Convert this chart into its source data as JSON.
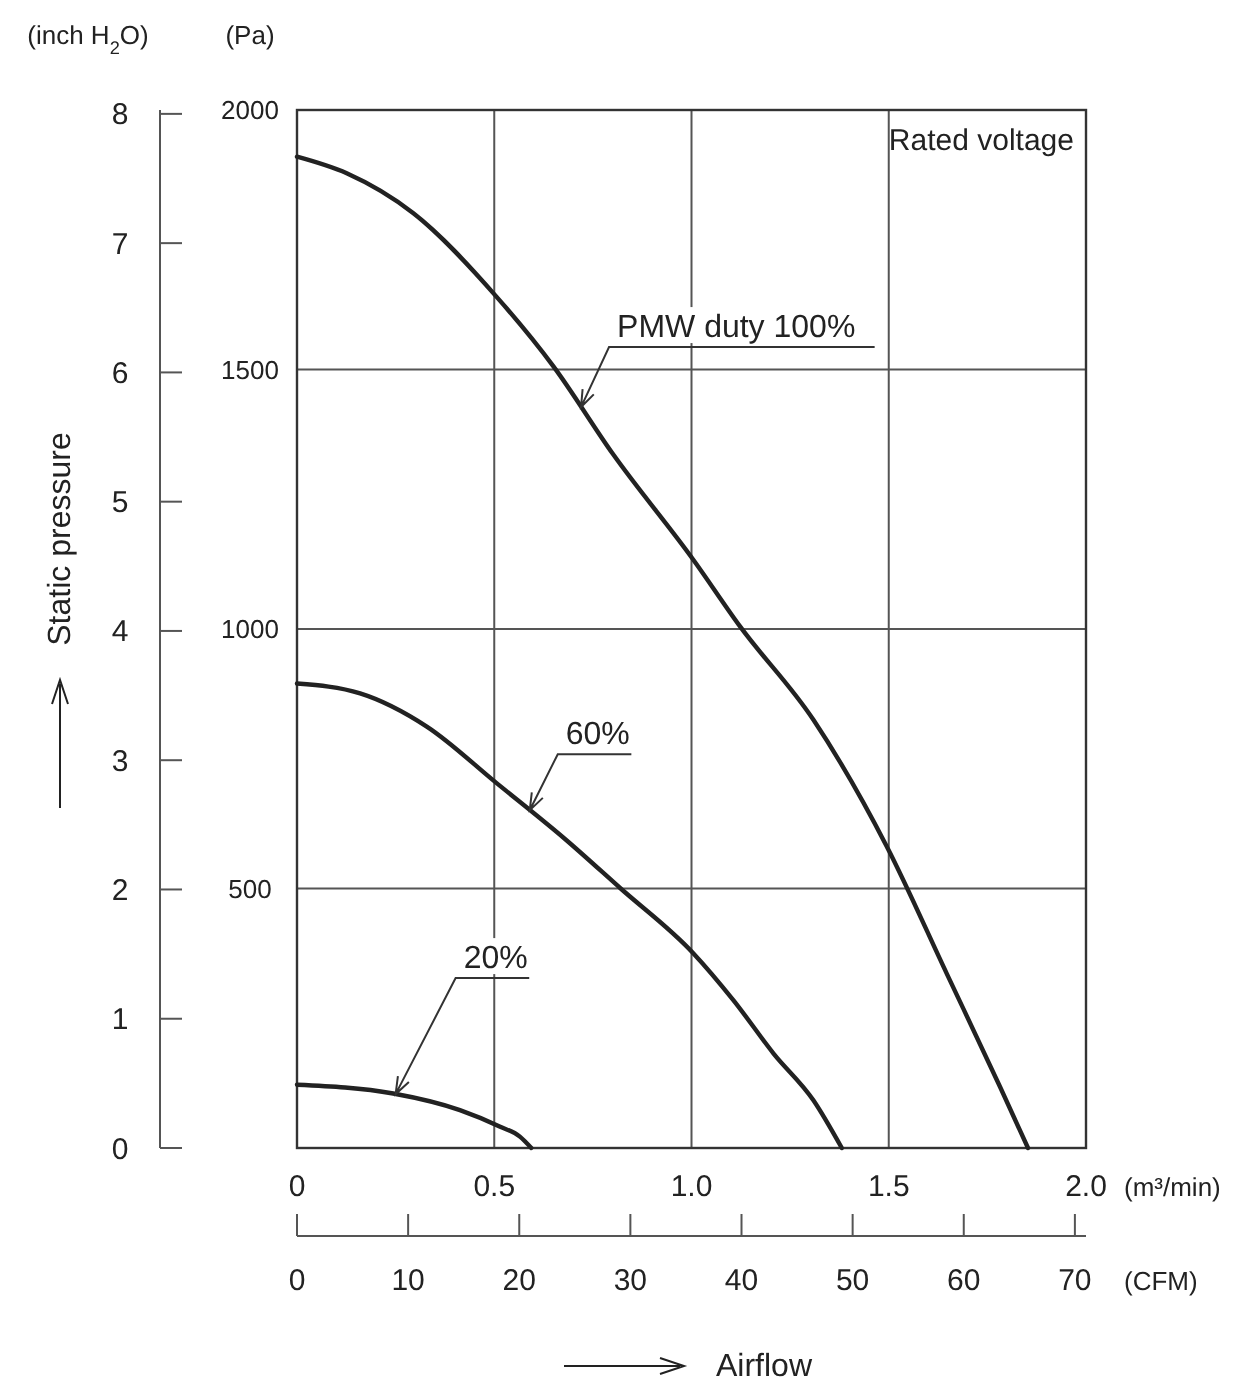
{
  "chart_data": {
    "type": "line",
    "ylabel": "(Pa)",
    "y2label": "(inch H$_{2}$O)",
    "xlabel": "(m³/min)",
    "x2label": "(CFM)",
    "annotations": [
      "Rated voltage",
      "Static pressure",
      "Airflow"
    ],
    "xlim": [
      0,
      2.0
    ],
    "xticks": [
      0,
      0.5,
      {
        "value": 1.0,
        "label": "1.0"
      },
      1.5,
      {
        "value": 2.0,
        "label": "2.0"
      }
    ],
    "x2lim": [
      0,
      71
    ],
    "x2ticks": [
      0,
      10,
      20,
      30,
      40,
      50,
      60,
      70
    ],
    "ylim": [
      0,
      2000
    ],
    "yticks": [
      {
        "value": 0,
        "label": null
      },
      500,
      1000,
      1500,
      2000
    ],
    "y2lim": [
      0,
      8.03
    ],
    "y2ticks": [
      0,
      1,
      2,
      3,
      4,
      5,
      6,
      7,
      8
    ],
    "grid": true,
    "series": [
      {
        "name": "PMW duty 100%",
        "color": "#222222",
        "x": [
          0,
          0.126,
          0.295,
          0.506,
          0.65,
          0.8,
          1.005,
          1.123,
          1.309,
          1.495,
          1.647,
          1.782,
          1.853
        ],
        "values": [
          1910,
          1878,
          1801,
          1640,
          1506,
          1338,
          1133,
          1005,
          825,
          581,
          336,
          118,
          0
        ]
      },
      {
        "name": "60%",
        "color": "#222222",
        "x": [
          0,
          0.16,
          0.329,
          0.506,
          0.683,
          0.819,
          1.005,
          1.106,
          1.208,
          1.309,
          1.381
        ],
        "values": [
          895,
          876,
          812,
          703,
          593,
          501,
          375,
          285,
          182,
          92,
          0
        ]
      },
      {
        "name": "20%",
        "color": "#222222",
        "x": [
          0,
          0.244,
          0.413,
          0.515,
          0.565,
          0.594
        ],
        "values": [
          122,
          105,
          73,
          41,
          22,
          0
        ]
      }
    ]
  }
}
